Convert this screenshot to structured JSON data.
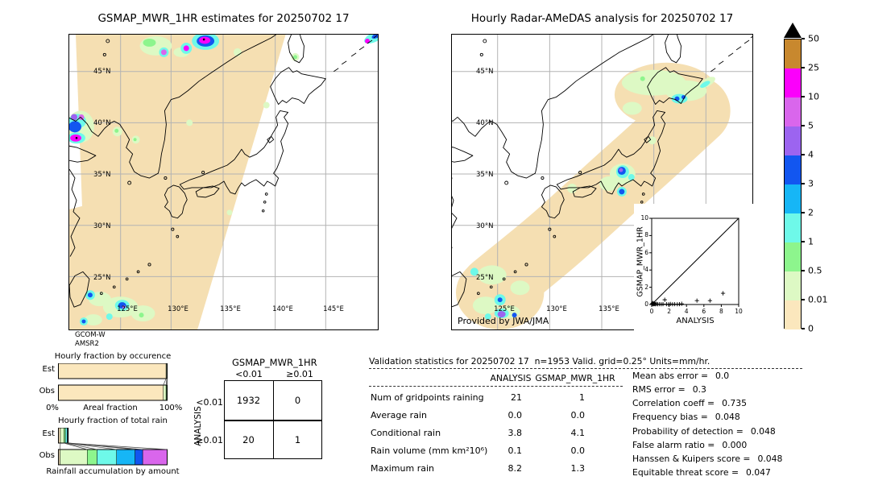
{
  "palette": {
    "gold": "#c8882e",
    "magenta": "#fb00fb",
    "orchid": "#d966ec",
    "purple": "#9c64f0",
    "blue": "#1256f0",
    "skyblue": "#16b6f6",
    "cyan": "#6ef9e9",
    "green": "#8df58d",
    "palegreen": "#ddf9c4",
    "tan": "#fbe7bd",
    "swath": "#f5dfb2"
  },
  "header": {
    "left_title": "GSMAP_MWR_1HR estimates for 20250702 17",
    "right_title": "Hourly Radar-AMeDAS analysis for 20250702 17"
  },
  "maps": {
    "lat_labels": [
      "45°N",
      "40°N",
      "35°N",
      "30°N",
      "25°N"
    ],
    "lon_labels": [
      "125°E",
      "130°E",
      "135°E",
      "140°E",
      "145°E"
    ],
    "lon_labels_right": [
      "125°E",
      "130°E",
      "135°E"
    ],
    "left_source": [
      "GCOM-W",
      "AMSR2"
    ],
    "right_credit": "Provided by JWA/JMA"
  },
  "colorbar": {
    "tick_labels": [
      "50",
      "25",
      "10",
      "5",
      "4",
      "3",
      "2",
      "1",
      "0.5",
      "0.01",
      "0"
    ],
    "segments": [
      "gold",
      "magenta",
      "orchid",
      "purple",
      "blue",
      "skyblue",
      "cyan",
      "green",
      "palegreen",
      "tan"
    ]
  },
  "occurrence_chart": {
    "title": "Hourly fraction by occurence",
    "row_labels": [
      "Est",
      "Obs"
    ],
    "axis_left": "0%",
    "axis_center": "Areal fraction",
    "axis_right": "100%",
    "est": [
      [
        "tan",
        0.99
      ],
      [
        "palegreen",
        0.007
      ],
      [
        "green",
        0.003
      ]
    ],
    "obs": [
      [
        "tan",
        0.965
      ],
      [
        "palegreen",
        0.025
      ],
      [
        "green",
        0.007
      ],
      [
        "cyan",
        0.003
      ]
    ]
  },
  "totalrain_chart": {
    "title": "Hourly fraction of total rain",
    "caption": "Rainfall accumulation by amount",
    "row_labels": [
      "Est",
      "Obs"
    ],
    "est": [
      [
        "tan",
        0.018
      ],
      [
        "palegreen",
        0.032
      ],
      [
        "green",
        0.014
      ],
      [
        "cyan",
        0.016
      ],
      [
        "skyblue",
        0.006
      ],
      [
        "blue",
        0.004
      ]
    ],
    "obs": [
      [
        "tan",
        0.015
      ],
      [
        "palegreen",
        0.25
      ],
      [
        "green",
        0.09
      ],
      [
        "cyan",
        0.18
      ],
      [
        "skyblue",
        0.17
      ],
      [
        "blue",
        0.07
      ],
      [
        "orchid",
        0.225
      ]
    ]
  },
  "contingency": {
    "title": "GSMAP_MWR_1HR",
    "col_labels": [
      "<0.01",
      "≥0.01"
    ],
    "row_axis": "ANALYSIS",
    "row_labels": [
      "<0.01",
      "≥0.01"
    ],
    "cells": [
      [
        "1932",
        "0"
      ],
      [
        "20",
        "1"
      ]
    ]
  },
  "validation": {
    "title": "Validation statistics for 20250702 17  n=1953 Valid. grid=0.25° Units=mm/hr.",
    "col_headers": [
      "ANALYSIS",
      "GSMAP_MWR_1HR"
    ],
    "rows": [
      {
        "label": "Num of gridpoints raining",
        "analysis": "21",
        "gsmap": "1"
      },
      {
        "label": "Average rain",
        "analysis": "0.0",
        "gsmap": "0.0"
      },
      {
        "label": "Conditional rain",
        "analysis": "3.8",
        "gsmap": "4.1"
      },
      {
        "label": "Rain volume (mm km²10⁶)",
        "analysis": "0.1",
        "gsmap": "0.0"
      },
      {
        "label": "Maximum rain",
        "analysis": "8.2",
        "gsmap": "1.3"
      }
    ]
  },
  "stats": {
    "items": [
      {
        "label": "Mean abs error =",
        "value": "0.0"
      },
      {
        "label": "RMS error =",
        "value": "0.3"
      },
      {
        "label": "Correlation coeff =",
        "value": "0.735"
      },
      {
        "label": "Frequency bias =",
        "value": "0.048"
      },
      {
        "label": "Probability of detection =",
        "value": "0.048"
      },
      {
        "label": "False alarm ratio =",
        "value": "0.000"
      },
      {
        "label": "Hanssen & Kuipers score =",
        "value": "0.048"
      },
      {
        "label": "Equitable threat score =",
        "value": "0.047"
      }
    ]
  },
  "scatter": {
    "xlabel": "ANALYSIS",
    "ylabel": "GSMAP_MWR_1HR",
    "ticks": [
      "0",
      "2",
      "4",
      "6",
      "8",
      "10"
    ],
    "points": [
      [
        0.03,
        0.02
      ],
      [
        0.06,
        0.1
      ],
      [
        0.1,
        0.04
      ],
      [
        0.15,
        0.18
      ],
      [
        0.2,
        0.08
      ],
      [
        0.25,
        0.03
      ],
      [
        0.3,
        0.14
      ],
      [
        0.35,
        0.06
      ],
      [
        0.45,
        0.03
      ],
      [
        0.55,
        0.08
      ],
      [
        0.7,
        0.03
      ],
      [
        0.9,
        0.04
      ],
      [
        1.1,
        0.03
      ],
      [
        1.3,
        0.05
      ],
      [
        1.5,
        0.55
      ],
      [
        1.7,
        0.04
      ],
      [
        1.95,
        0.03
      ],
      [
        2.15,
        0.06
      ],
      [
        2.4,
        0.03
      ],
      [
        2.65,
        0.04
      ],
      [
        2.95,
        0.03
      ],
      [
        3.2,
        0.04
      ],
      [
        3.45,
        0.08
      ],
      [
        5.2,
        0.45
      ],
      [
        6.7,
        0.45
      ],
      [
        8.2,
        1.3
      ]
    ]
  },
  "chart_data": [
    {
      "type": "heatmap",
      "name": "gsmap-estimate-map",
      "title": "GSMAP_MWR_1HR estimates for 20250702 17",
      "lon_ticks": [
        "125°E",
        "130°E",
        "135°E",
        "140°E",
        "145°E"
      ],
      "lat_ticks": [
        "45°N",
        "40°N",
        "35°N",
        "30°N",
        "25°N"
      ],
      "units": "mm/hr",
      "source": "GCOM-W AMSR2 swath (tan shading = valid coverage)"
    },
    {
      "type": "heatmap",
      "name": "radar-amedas-map",
      "title": "Hourly Radar-AMeDAS analysis for 20250702 17",
      "lon_ticks": [
        "125°E",
        "130°E",
        "135°E"
      ],
      "lat_ticks": [
        "45°N",
        "40°N",
        "35°N",
        "30°N",
        "25°N"
      ],
      "units": "mm/hr",
      "credit": "Provided by JWA/JMA"
    },
    {
      "type": "heatmap",
      "name": "shared-colorbar",
      "units": "mm/hr",
      "levels": [
        0,
        0.01,
        0.5,
        1,
        2,
        3,
        4,
        5,
        10,
        25,
        50
      ],
      "colors": [
        "#fbe7bd",
        "#ddf9c4",
        "#8df58d",
        "#6ef9e9",
        "#16b6f6",
        "#1256f0",
        "#9c64f0",
        "#d966ec",
        "#fb00fb",
        "#c8882e"
      ],
      "over_color": "#000000"
    },
    {
      "type": "bar",
      "subtype": "stacked-horizontal",
      "title": "Hourly fraction by occurence",
      "xlabel": "Areal fraction",
      "xlim": [
        0,
        100
      ],
      "categories": [
        "Est",
        "Obs"
      ],
      "series": [
        {
          "name": "Est",
          "segments": [
            {
              "bin": "0-0.01",
              "fraction": 0.99
            },
            {
              "bin": "0.01-0.5",
              "fraction": 0.007
            },
            {
              "bin": "0.5-1",
              "fraction": 0.003
            }
          ]
        },
        {
          "name": "Obs",
          "segments": [
            {
              "bin": "0-0.01",
              "fraction": 0.965
            },
            {
              "bin": "0.01-0.5",
              "fraction": 0.025
            },
            {
              "bin": "0.5-1",
              "fraction": 0.007
            },
            {
              "bin": "1-2",
              "fraction": 0.003
            }
          ]
        }
      ]
    },
    {
      "type": "bar",
      "subtype": "stacked-horizontal",
      "title": "Hourly fraction of total rain",
      "xlabel": "Rainfall accumulation by amount",
      "xlim": [
        0,
        1
      ],
      "categories": [
        "Est",
        "Obs"
      ],
      "series": [
        {
          "name": "Est",
          "segments": [
            {
              "bin": "0-0.01",
              "fraction": 0.018
            },
            {
              "bin": "0.01-0.5",
              "fraction": 0.032
            },
            {
              "bin": "0.5-1",
              "fraction": 0.014
            },
            {
              "bin": "1-2",
              "fraction": 0.016
            },
            {
              "bin": "2-3",
              "fraction": 0.006
            },
            {
              "bin": "3-4",
              "fraction": 0.004
            }
          ]
        },
        {
          "name": "Obs",
          "segments": [
            {
              "bin": "0-0.01",
              "fraction": 0.015
            },
            {
              "bin": "0.01-0.5",
              "fraction": 0.25
            },
            {
              "bin": "0.5-1",
              "fraction": 0.09
            },
            {
              "bin": "1-2",
              "fraction": 0.18
            },
            {
              "bin": "2-3",
              "fraction": 0.17
            },
            {
              "bin": "3-4",
              "fraction": 0.07
            },
            {
              "bin": "5-10",
              "fraction": 0.225
            }
          ]
        }
      ]
    },
    {
      "type": "table",
      "name": "contingency-table",
      "row_axis": "ANALYSIS",
      "col_axis": "GSMAP_MWR_1HR",
      "bins": [
        "<0.01",
        "≥0.01"
      ],
      "cells": [
        [
          1932,
          0
        ],
        [
          20,
          1
        ]
      ]
    },
    {
      "type": "table",
      "name": "validation-statistics",
      "title": "Validation statistics for 20250702 17  n=1953 Valid. grid=0.25° Units=mm/hr.",
      "columns": [
        "ANALYSIS",
        "GSMAP_MWR_1HR"
      ],
      "rows": [
        [
          "Num of gridpoints raining",
          21,
          1
        ],
        [
          "Average rain",
          0.0,
          0.0
        ],
        [
          "Conditional rain",
          3.8,
          4.1
        ],
        [
          "Rain volume (mm km²10⁶)",
          0.1,
          0.0
        ],
        [
          "Maximum rain",
          8.2,
          1.3
        ]
      ]
    },
    {
      "type": "table",
      "name": "skill-scores",
      "rows": [
        [
          "Mean abs error",
          0.0
        ],
        [
          "RMS error",
          0.3
        ],
        [
          "Correlation coeff",
          0.735
        ],
        [
          "Frequency bias",
          0.048
        ],
        [
          "Probability of detection",
          0.048
        ],
        [
          "False alarm ratio",
          0.0
        ],
        [
          "Hanssen & Kuipers score",
          0.048
        ],
        [
          "Equitable threat score",
          0.047
        ]
      ]
    },
    {
      "type": "scatter",
      "name": "gsmap-vs-analysis",
      "xlabel": "ANALYSIS",
      "ylabel": "GSMAP_MWR_1HR",
      "xlim": [
        0,
        10
      ],
      "ylim": [
        0,
        10
      ],
      "reference_line": "y=x",
      "marker": "+",
      "points": [
        [
          0.03,
          0.02
        ],
        [
          0.06,
          0.1
        ],
        [
          0.1,
          0.04
        ],
        [
          0.15,
          0.18
        ],
        [
          0.2,
          0.08
        ],
        [
          0.25,
          0.03
        ],
        [
          0.3,
          0.14
        ],
        [
          0.35,
          0.06
        ],
        [
          0.45,
          0.03
        ],
        [
          0.55,
          0.08
        ],
        [
          0.7,
          0.03
        ],
        [
          0.9,
          0.04
        ],
        [
          1.1,
          0.03
        ],
        [
          1.3,
          0.05
        ],
        [
          1.5,
          0.55
        ],
        [
          1.7,
          0.04
        ],
        [
          1.95,
          0.03
        ],
        [
          2.15,
          0.06
        ],
        [
          2.4,
          0.03
        ],
        [
          2.65,
          0.04
        ],
        [
          2.95,
          0.03
        ],
        [
          3.2,
          0.04
        ],
        [
          3.45,
          0.08
        ],
        [
          5.2,
          0.45
        ],
        [
          6.7,
          0.45
        ],
        [
          8.2,
          1.3
        ]
      ]
    }
  ]
}
